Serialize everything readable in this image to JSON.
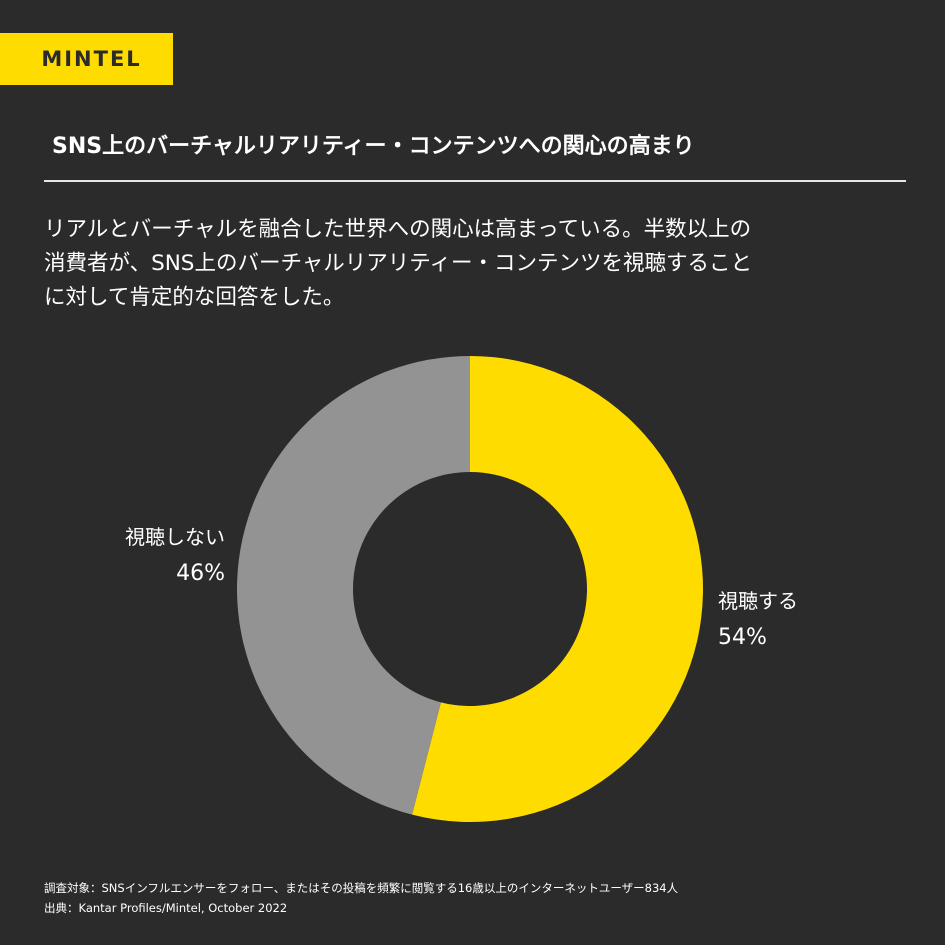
{
  "brand": {
    "logo_text": "MINTEL",
    "accent": "#ffdc00",
    "background": "#2b2b2b"
  },
  "title": "SNS上のバーチャルリアリティー・コンテンツへの関心の高まり",
  "lead_lines": [
    "リアルとバーチャルを融合した世界への関心は高まっている。半数以上の",
    "消費者が、SNS上のバーチャルリアリティー・コンテンツを視聴すること",
    "に対して肯定的な回答をした。"
  ],
  "chart_data": {
    "type": "pie",
    "donut": true,
    "slices": [
      {
        "label": "視聴する",
        "value": 54,
        "value_label": "54%",
        "color": "#ffdc00"
      },
      {
        "label": "視聴しない",
        "value": 46,
        "value_label": "46%",
        "color": "#939393"
      }
    ]
  },
  "footnotes": {
    "survey": "調査対象：SNSインフルエンサーをフォロー、またはその投稿を頻繁に閲覧する16歳以上のインターネットユーザー834人",
    "source": "出典：Kantar Profiles/Mintel, October 2022"
  }
}
